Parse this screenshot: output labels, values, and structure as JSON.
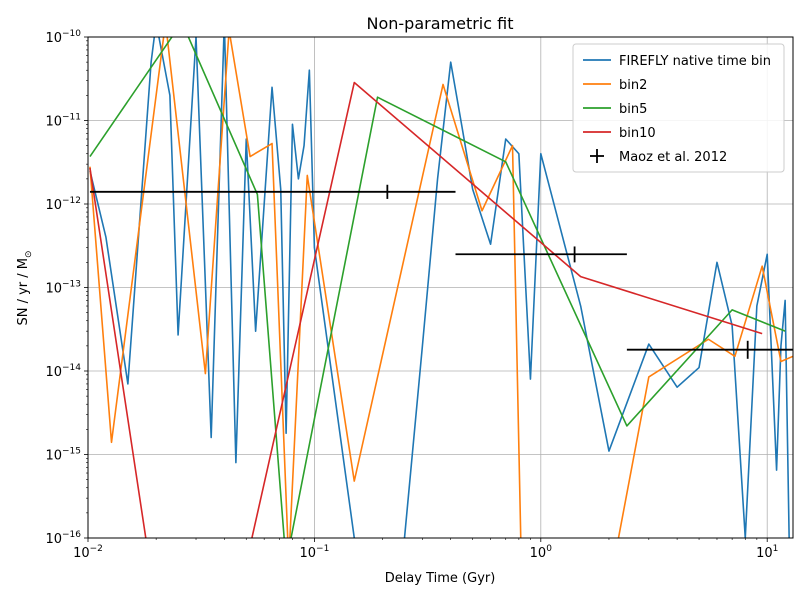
{
  "chart_data": {
    "type": "line",
    "title": "Non-parametric fit",
    "xlabel": "Delay Time (Gyr)",
    "ylabel": "SN / yr / M",
    "ylabel_symbol": "⊙",
    "xscale": "log",
    "yscale": "log",
    "xlim": [
      0.01,
      13.0
    ],
    "ylim": [
      1e-16,
      1e-10
    ],
    "grid": true,
    "legend_position": "top-right",
    "x_ticks": [
      {
        "value": 0.01,
        "base": "10",
        "exp": "−2"
      },
      {
        "value": 0.1,
        "base": "10",
        "exp": "−1"
      },
      {
        "value": 1,
        "base": "10",
        "exp": "0"
      },
      {
        "value": 10,
        "base": "10",
        "exp": "1"
      }
    ],
    "y_ticks": [
      {
        "value": 1e-16,
        "base": "10",
        "exp": "−16"
      },
      {
        "value": 1e-15,
        "base": "10",
        "exp": "−15"
      },
      {
        "value": 1e-14,
        "base": "10",
        "exp": "−14"
      },
      {
        "value": 1e-13,
        "base": "10",
        "exp": "−13"
      },
      {
        "value": 1e-12,
        "base": "10",
        "exp": "−12"
      },
      {
        "value": 1e-11,
        "base": "10",
        "exp": "−11"
      },
      {
        "value": 1e-10,
        "base": "10",
        "exp": "−10"
      }
    ],
    "series": [
      {
        "name": "FIREFLY native time bin",
        "color": "#1f77b4",
        "points": [
          [
            0.0102,
            2.5e-12
          ],
          [
            0.012,
            4e-13
          ],
          [
            0.015,
            7e-15
          ],
          [
            0.019,
            5e-11
          ],
          [
            0.02,
            1.5e-10
          ],
          [
            0.023,
            2e-11
          ],
          [
            0.025,
            2.7e-14
          ],
          [
            0.03,
            1e-10
          ],
          [
            0.035,
            1.6e-15
          ],
          [
            0.04,
            1.5e-10
          ],
          [
            0.045,
            8e-16
          ],
          [
            0.05,
            6e-12
          ],
          [
            0.055,
            3e-14
          ],
          [
            0.065,
            2.5e-11
          ],
          [
            0.071,
            1.5e-12
          ],
          [
            0.075,
            1.8e-15
          ],
          [
            0.08,
            9e-12
          ],
          [
            0.085,
            2e-12
          ],
          [
            0.09,
            5e-12
          ],
          [
            0.095,
            4e-11
          ],
          [
            0.1,
            3e-13
          ],
          [
            0.15,
            1e-16
          ],
          [
            0.16,
            5e-17
          ],
          [
            0.25,
            1e-16
          ],
          [
            0.3,
            2e-14
          ],
          [
            0.35,
            2e-12
          ],
          [
            0.4,
            5e-11
          ],
          [
            0.45,
            8e-12
          ],
          [
            0.5,
            1.5e-12
          ],
          [
            0.6,
            3.3e-13
          ],
          [
            0.7,
            6e-12
          ],
          [
            0.8,
            4e-12
          ],
          [
            0.9,
            8e-15
          ],
          [
            1.0,
            4e-12
          ],
          [
            1.5,
            6e-14
          ],
          [
            2.0,
            1.1e-15
          ],
          [
            3.0,
            2.1e-14
          ],
          [
            4.0,
            6.4e-15
          ],
          [
            5.0,
            1.1e-14
          ],
          [
            6.0,
            2e-13
          ],
          [
            7.0,
            3.5e-14
          ],
          [
            8.0,
            1e-16
          ],
          [
            9.0,
            6e-14
          ],
          [
            10.0,
            2.5e-13
          ],
          [
            11.0,
            6.5e-16
          ],
          [
            11.5,
            2e-14
          ],
          [
            12.0,
            7e-14
          ],
          [
            12.5,
            1e-16
          ]
        ]
      },
      {
        "name": "bin2",
        "color": "#ff7f0e",
        "points": [
          [
            0.0102,
            2.8e-12
          ],
          [
            0.0127,
            1.4e-15
          ],
          [
            0.022,
            1.5e-10
          ],
          [
            0.033,
            9.3e-15
          ],
          [
            0.042,
            1.2e-10
          ],
          [
            0.052,
            3.7e-12
          ],
          [
            0.065,
            5.3e-12
          ],
          [
            0.077,
            5e-17
          ],
          [
            0.093,
            2.2e-12
          ],
          [
            0.15,
            4.8e-16
          ],
          [
            0.37,
            2.7e-11
          ],
          [
            0.55,
            8.3e-13
          ],
          [
            0.75,
            5e-12
          ],
          [
            0.82,
            5e-17
          ],
          [
            2.1,
            5e-17
          ],
          [
            3.0,
            8.5e-15
          ],
          [
            5.5,
            2.4e-14
          ],
          [
            7.2,
            1.5e-14
          ],
          [
            9.5,
            1.8e-13
          ],
          [
            11.5,
            1.3e-14
          ],
          [
            13.0,
            1.5e-14
          ]
        ]
      },
      {
        "name": "bin5",
        "color": "#2ca02c",
        "points": [
          [
            0.0102,
            3.7e-12
          ],
          [
            0.026,
            1.5e-10
          ],
          [
            0.056,
            1.3e-12
          ],
          [
            0.075,
            5e-17
          ],
          [
            0.19,
            1.9e-11
          ],
          [
            0.7,
            3.2e-12
          ],
          [
            2.4,
            2.2e-15
          ],
          [
            7.0,
            5.4e-14
          ],
          [
            12.0,
            3e-14
          ]
        ]
      },
      {
        "name": "bin10",
        "color": "#d62728",
        "points": [
          [
            0.0102,
            2.7e-12
          ],
          [
            0.018,
            1e-16
          ],
          [
            0.05,
            5e-17
          ],
          [
            0.15,
            2.85e-11
          ],
          [
            1.5,
            1.35e-13
          ],
          [
            9.5,
            2.8e-14
          ]
        ]
      }
    ],
    "observations": {
      "name": "Maoz et al. 2012",
      "color": "#000000",
      "points": [
        {
          "x": 0.21,
          "y": 1.4e-12,
          "xmin": 0.0102,
          "xmax": 0.42,
          "ylo": 1.15e-12,
          "yhi": 1.7e-12
        },
        {
          "x": 1.41,
          "y": 2.5e-13,
          "xmin": 0.42,
          "xmax": 2.4,
          "ylo": 2e-13,
          "yhi": 3.1e-13
        },
        {
          "x": 8.2,
          "y": 1.8e-14,
          "xmin": 2.4,
          "xmax": 13.0,
          "ylo": 1.4e-14,
          "yhi": 2.3e-14
        }
      ]
    }
  }
}
